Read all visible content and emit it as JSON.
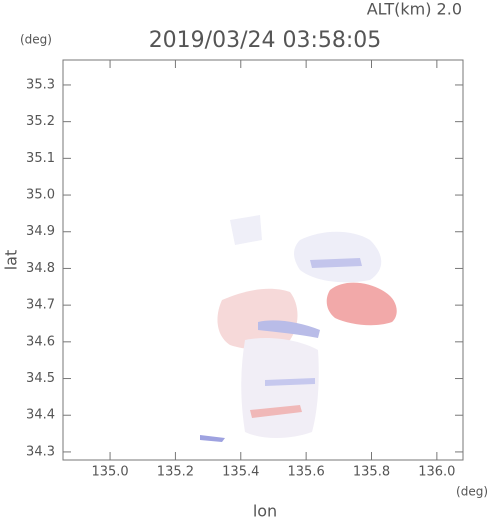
{
  "chart_data": {
    "type": "map",
    "title": "2019/03/24 03:58:05",
    "annotation": "ALT(km) 2.0",
    "x_label": "lon",
    "y_label": "lat",
    "x_unit": "(deg)",
    "y_unit": "(deg)",
    "xlim": [
      134.856,
      136.08
    ],
    "ylim": [
      34.278,
      35.368
    ],
    "xticks": [
      {
        "value": 135.0,
        "label": "135.0"
      },
      135.2,
      135.4,
      135.6,
      135.8,
      {
        "value": 136.0,
        "label": "136.0"
      }
    ],
    "yticks": [
      34.3,
      34.4,
      34.5,
      34.6,
      34.7,
      34.8,
      34.9,
      {
        "value": 35.0,
        "label": "35.0"
      },
      35.1,
      35.2,
      35.3
    ]
  }
}
